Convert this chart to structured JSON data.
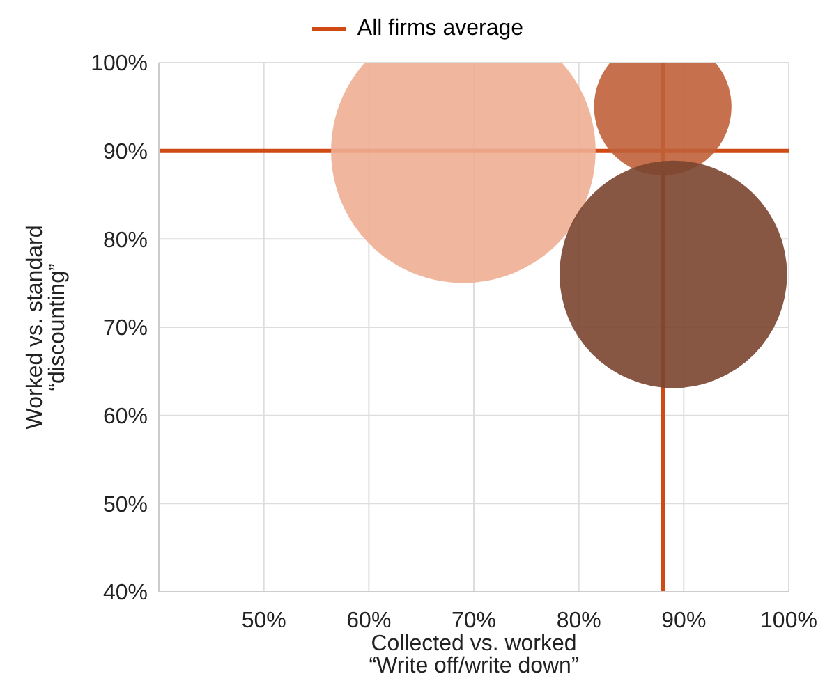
{
  "chart_data": {
    "type": "bubble",
    "xlabel": "Collected vs. worked\n“Write off/write down”",
    "ylabel": "Worked vs. standard\n“discounting”",
    "series": [
      {
        "x": [
          69
        ],
        "values": [
          90
        ],
        "sizes": [
          1
        ],
        "color": "#eeae93"
      },
      {
        "x": [
          88
        ],
        "values": [
          95
        ],
        "sizes": [
          0.27
        ],
        "color": "#c0603a"
      },
      {
        "x": [
          89
        ],
        "values": [
          76
        ],
        "sizes": [
          0.74
        ],
        "color": "#7a4530"
      }
    ],
    "xlim": [
      40,
      100
    ],
    "xticks": [
      {
        "value": 40,
        "label": null
      },
      {
        "value": 50,
        "label": "50%"
      },
      {
        "value": 60,
        "label": "60%"
      },
      {
        "value": 70,
        "label": "70%"
      },
      {
        "value": 80,
        "label": "80%"
      },
      {
        "value": 90,
        "label": "90%"
      },
      {
        "value": 100,
        "label": "100%"
      }
    ],
    "ylim": [
      40,
      100
    ],
    "yticks": [
      {
        "value": 40,
        "label": "40%"
      },
      {
        "value": 50,
        "label": "50%"
      },
      {
        "value": 60,
        "label": "60%"
      },
      {
        "value": 70,
        "label": "70%"
      },
      {
        "value": 80,
        "label": "80%"
      },
      {
        "value": 90,
        "label": "90%"
      },
      {
        "value": 100,
        "label": "100%"
      }
    ],
    "ref_lines": [
      {
        "axis": "x",
        "value": 88,
        "label": "All firms average",
        "color": "#d04a14"
      },
      {
        "axis": "y",
        "value": 90,
        "color": "#d04a14"
      }
    ],
    "grid": true,
    "legend": "top"
  }
}
